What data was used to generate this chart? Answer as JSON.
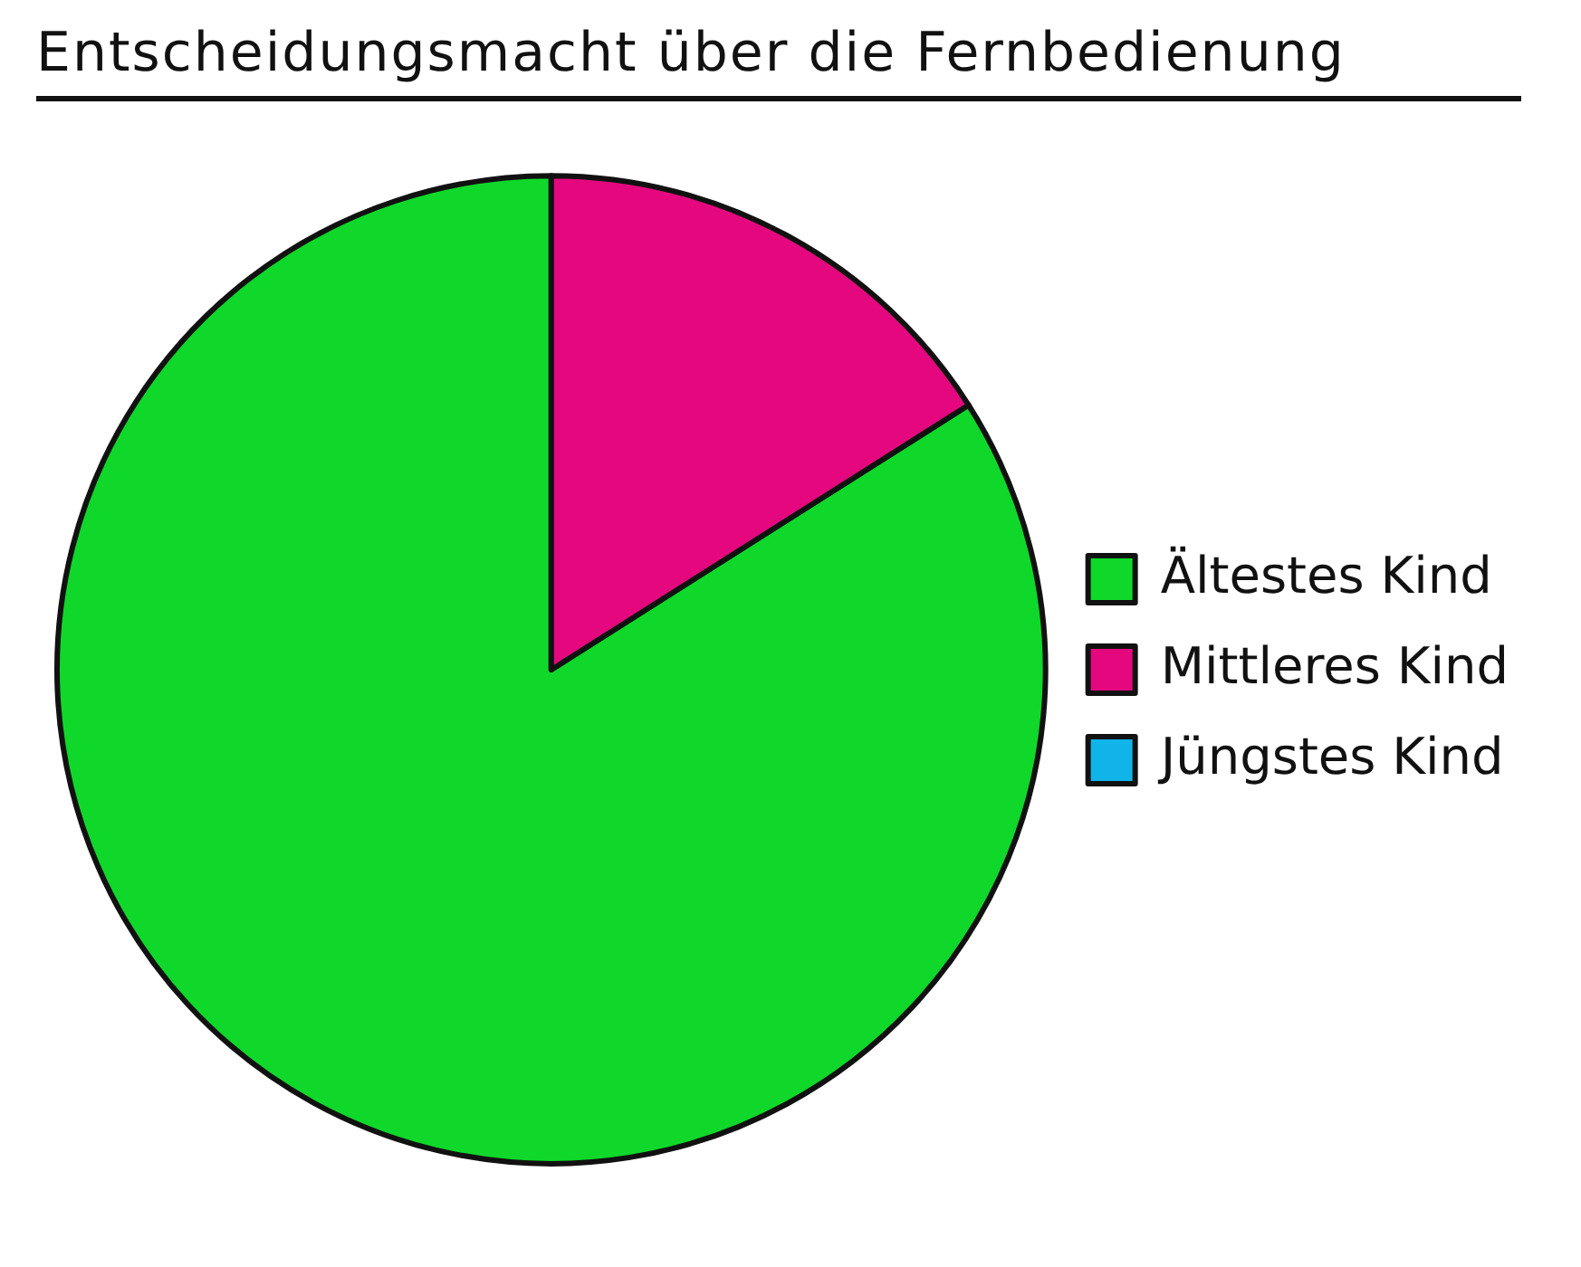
{
  "chart_data": {
    "type": "pie",
    "title": "Entscheidungsmacht über die Fernbedienung",
    "categories": [
      "Ältestes Kind",
      "Mittleres Kind",
      "Jüngstes Kind"
    ],
    "values": [
      84,
      16,
      0
    ],
    "colors": [
      "#0fd82a",
      "#e5077e",
      "#10b4e8"
    ],
    "legend": "right"
  }
}
